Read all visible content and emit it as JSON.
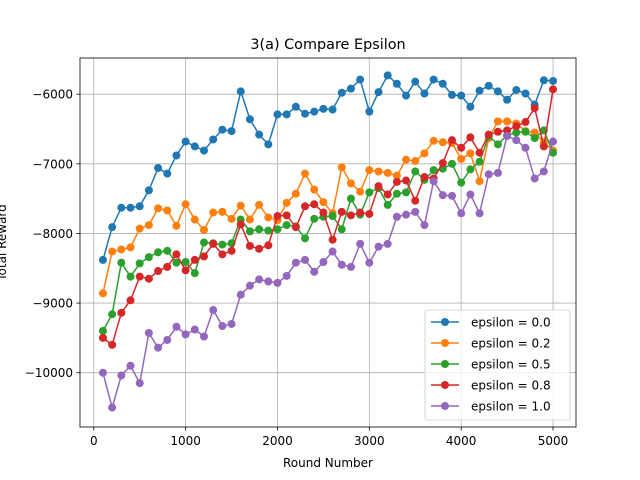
{
  "chart_data": {
    "type": "line",
    "title": "3(a) Compare Epsilon",
    "xlabel": "Round Number",
    "ylabel": "Total Reward",
    "xlim": [
      -150,
      5250
    ],
    "ylim": [
      -10780,
      -5480
    ],
    "xticks": [
      0,
      1000,
      2000,
      3000,
      4000,
      5000
    ],
    "xtick_labels": [
      "0",
      "1000",
      "2000",
      "3000",
      "4000",
      "5000"
    ],
    "yticks": [
      -10000,
      -9000,
      -8000,
      -7000,
      -6000
    ],
    "ytick_labels": [
      "−10000",
      "−9000",
      "−8000",
      "−7000",
      "−6000"
    ],
    "grid": true,
    "legend_position": "lower right",
    "x": [
      100,
      200,
      300,
      400,
      500,
      600,
      700,
      800,
      900,
      1000,
      1100,
      1200,
      1300,
      1400,
      1500,
      1600,
      1700,
      1800,
      1900,
      2000,
      2100,
      2200,
      2300,
      2400,
      2500,
      2600,
      2700,
      2800,
      2900,
      3000,
      3100,
      3200,
      3300,
      3400,
      3500,
      3600,
      3700,
      3800,
      3900,
      4000,
      4100,
      4200,
      4300,
      4400,
      4500,
      4600,
      4700,
      4800,
      4900,
      5000
    ],
    "series": [
      {
        "name": "epsilon = 0.0",
        "color": "#1f77b4",
        "values": [
          -8380,
          -7910,
          -7630,
          -7630,
          -7610,
          -7380,
          -7060,
          -7140,
          -6880,
          -6680,
          -6750,
          -6810,
          -6650,
          -6510,
          -6530,
          -5960,
          -6360,
          -6580,
          -6720,
          -6290,
          -6290,
          -6180,
          -6280,
          -6250,
          -6210,
          -6220,
          -5980,
          -5920,
          -5790,
          -6250,
          -5970,
          -5730,
          -5850,
          -6020,
          -5820,
          -5990,
          -5790,
          -5850,
          -6010,
          -6020,
          -6180,
          -5950,
          -5880,
          -5960,
          -6080,
          -5940,
          -5990,
          -6150,
          -5800,
          -5810
        ]
      },
      {
        "name": "epsilon = 0.2",
        "color": "#ff7f0e",
        "values": [
          -8860,
          -8260,
          -8230,
          -8200,
          -7930,
          -7880,
          -7640,
          -7670,
          -7890,
          -7580,
          -7800,
          -7950,
          -7700,
          -7690,
          -7790,
          -7600,
          -7800,
          -7590,
          -7770,
          -7810,
          -7560,
          -7430,
          -7140,
          -7370,
          -7550,
          -7710,
          -7050,
          -7280,
          -7400,
          -7090,
          -7110,
          -7130,
          -7170,
          -6940,
          -6960,
          -6850,
          -6670,
          -6690,
          -6700,
          -6930,
          -6850,
          -7250,
          -6630,
          -6390,
          -6390,
          -6420,
          -6530,
          -6550,
          -6690,
          -6810
        ]
      },
      {
        "name": "epsilon = 0.5",
        "color": "#2ca02c",
        "values": [
          -9400,
          -9160,
          -8420,
          -8620,
          -8430,
          -8340,
          -8270,
          -8250,
          -8420,
          -8410,
          -8570,
          -8130,
          -8140,
          -8160,
          -8140,
          -7800,
          -7970,
          -7940,
          -7960,
          -7940,
          -7880,
          -7900,
          -8070,
          -7790,
          -7760,
          -7750,
          -7940,
          -7500,
          -7730,
          -7410,
          -7350,
          -7590,
          -7430,
          -7410,
          -7110,
          -7230,
          -7090,
          -7070,
          -7000,
          -7270,
          -7080,
          -6970,
          -6600,
          -6720,
          -6590,
          -6550,
          -6540,
          -6630,
          -6520,
          -6840
        ]
      },
      {
        "name": "epsilon = 0.8",
        "color": "#d62728",
        "values": [
          -9500,
          -9600,
          -9140,
          -8960,
          -8620,
          -8650,
          -8540,
          -8480,
          -8300,
          -8530,
          -8380,
          -8330,
          -8150,
          -8300,
          -8250,
          -7870,
          -8180,
          -8220,
          -8170,
          -7750,
          -7740,
          -7910,
          -7610,
          -7580,
          -7700,
          -8090,
          -7690,
          -7740,
          -7700,
          -7720,
          -7320,
          -7440,
          -7260,
          -7240,
          -7530,
          -7190,
          -7210,
          -6990,
          -6660,
          -6770,
          -6620,
          -6840,
          -6580,
          -6540,
          -6520,
          -6460,
          -6400,
          -6200,
          -6750,
          -5930
        ]
      },
      {
        "name": "epsilon = 1.0",
        "color": "#9467bd",
        "values": [
          -10000,
          -10500,
          -10040,
          -9900,
          -10150,
          -9430,
          -9640,
          -9530,
          -9340,
          -9450,
          -9380,
          -9480,
          -9100,
          -9330,
          -9300,
          -8880,
          -8750,
          -8660,
          -8690,
          -8710,
          -8610,
          -8420,
          -8380,
          -8550,
          -8410,
          -8260,
          -8450,
          -8480,
          -8150,
          -8420,
          -8190,
          -8150,
          -7760,
          -7730,
          -7690,
          -7880,
          -7250,
          -7450,
          -7460,
          -7710,
          -7440,
          -7710,
          -7150,
          -7130,
          -6600,
          -6660,
          -6770,
          -7210,
          -7110,
          -6680
        ]
      }
    ]
  }
}
